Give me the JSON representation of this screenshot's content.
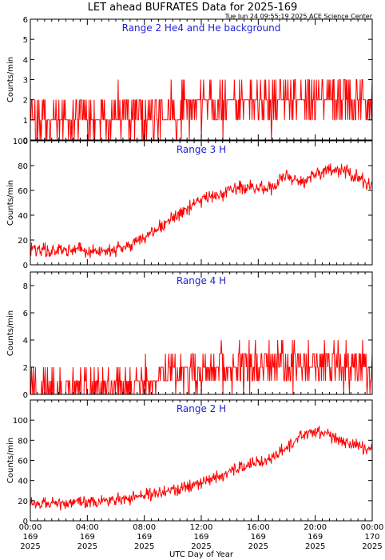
{
  "header": {
    "title": "LET ahead BUFRATES Data for 2025-169",
    "timestamp": "Tue Jun 24 09:55:19 2025 ACE Science Center"
  },
  "colors": {
    "series": "#ff0000",
    "panel_label": "#1f1fd6",
    "axes": "#000000"
  },
  "chart_data": [
    {
      "type": "line",
      "title": "Range 2 He4 and He background",
      "ylabel": "Counts/min",
      "ylim": [
        0,
        6
      ],
      "yticks": [
        0,
        1,
        2,
        3,
        4,
        5,
        6
      ],
      "xlim": [
        0,
        24
      ],
      "x": [
        0,
        1,
        2,
        3,
        4,
        5,
        6,
        7,
        8,
        9,
        10,
        11,
        12,
        13,
        14,
        15,
        16,
        17,
        18,
        19,
        20,
        21,
        22,
        23,
        24
      ],
      "series": [
        {
          "values": [
            1,
            1,
            1,
            1,
            1,
            1.1,
            1.1,
            1.2,
            1.2,
            1.4,
            1.5,
            1.6,
            1.7,
            1.7,
            1.8,
            1.9,
            1.8,
            1.9,
            2,
            2,
            2,
            2.1,
            2,
            2,
            2
          ]
        }
      ],
      "noise": {
        "spread": 1.5,
        "max": 6,
        "step": 1
      }
    },
    {
      "type": "line",
      "title": "Range 3 H",
      "ylabel": "Counts/min",
      "ylim": [
        0,
        100
      ],
      "yticks": [
        0,
        20,
        40,
        60,
        80,
        100
      ],
      "xlim": [
        0,
        24
      ],
      "x": [
        0,
        1,
        2,
        3,
        4,
        5,
        6,
        7,
        8,
        9,
        10,
        11,
        12,
        13,
        14,
        15,
        16,
        17,
        18,
        19,
        20,
        21,
        22,
        23,
        24
      ],
      "series": [
        {
          "values": [
            12,
            12,
            12,
            13,
            12,
            11,
            12,
            15,
            22,
            30,
            38,
            45,
            52,
            55,
            60,
            63,
            62,
            62,
            72,
            66,
            72,
            76,
            76,
            70,
            64
          ]
        }
      ],
      "noise": {
        "spread": 7,
        "max": 98,
        "step": 0
      }
    },
    {
      "type": "line",
      "title": "Range 4 H",
      "ylabel": "Counts/min",
      "ylim": [
        0,
        9
      ],
      "yticks": [
        0,
        2,
        4,
        6,
        8
      ],
      "xlim": [
        0,
        24
      ],
      "x": [
        0,
        1,
        2,
        3,
        4,
        5,
        6,
        7,
        8,
        9,
        10,
        11,
        12,
        13,
        14,
        15,
        16,
        17,
        18,
        19,
        20,
        21,
        22,
        23,
        24
      ],
      "series": [
        {
          "values": [
            0.3,
            0.3,
            0.3,
            0.3,
            0.3,
            0.4,
            0.4,
            0.6,
            0.9,
            1.2,
            1.4,
            1.6,
            1.8,
            2,
            2.1,
            2.2,
            2.1,
            2.2,
            2.3,
            2.1,
            2.2,
            2.2,
            2,
            2,
            1.8
          ]
        }
      ],
      "noise": {
        "spread": 2,
        "max": 9,
        "step": 1
      }
    },
    {
      "type": "line",
      "title": "Range 2 H",
      "ylabel": "Counts/min",
      "ylim": [
        0,
        120
      ],
      "yticks": [
        0,
        20,
        40,
        60,
        80,
        100
      ],
      "xlim": [
        0,
        24
      ],
      "x": [
        0,
        1,
        2,
        3,
        4,
        5,
        6,
        7,
        8,
        9,
        10,
        11,
        12,
        13,
        14,
        15,
        16,
        17,
        18,
        19,
        20,
        21,
        22,
        23,
        24
      ],
      "series": [
        {
          "values": [
            18,
            18,
            18,
            19,
            20,
            20,
            21,
            22,
            25,
            28,
            30,
            34,
            38,
            42,
            50,
            55,
            58,
            63,
            72,
            85,
            88,
            84,
            78,
            74,
            70
          ]
        }
      ],
      "noise": {
        "spread": 8,
        "max": 115,
        "step": 0
      }
    }
  ],
  "x_axis": {
    "label": "UTC Day of Year",
    "ticks": [
      {
        "time": "00:00",
        "day": "169",
        "year": "2025",
        "hour": 0
      },
      {
        "time": "04:00",
        "day": "169",
        "year": "2025",
        "hour": 4
      },
      {
        "time": "08:00",
        "day": "169",
        "year": "2025",
        "hour": 8
      },
      {
        "time": "12:00",
        "day": "169",
        "year": "2025",
        "hour": 12
      },
      {
        "time": "16:00",
        "day": "169",
        "year": "2025",
        "hour": 16
      },
      {
        "time": "20:00",
        "day": "169",
        "year": "2025",
        "hour": 20
      },
      {
        "time": "00:00",
        "day": "170",
        "year": "2025",
        "hour": 24
      }
    ]
  }
}
